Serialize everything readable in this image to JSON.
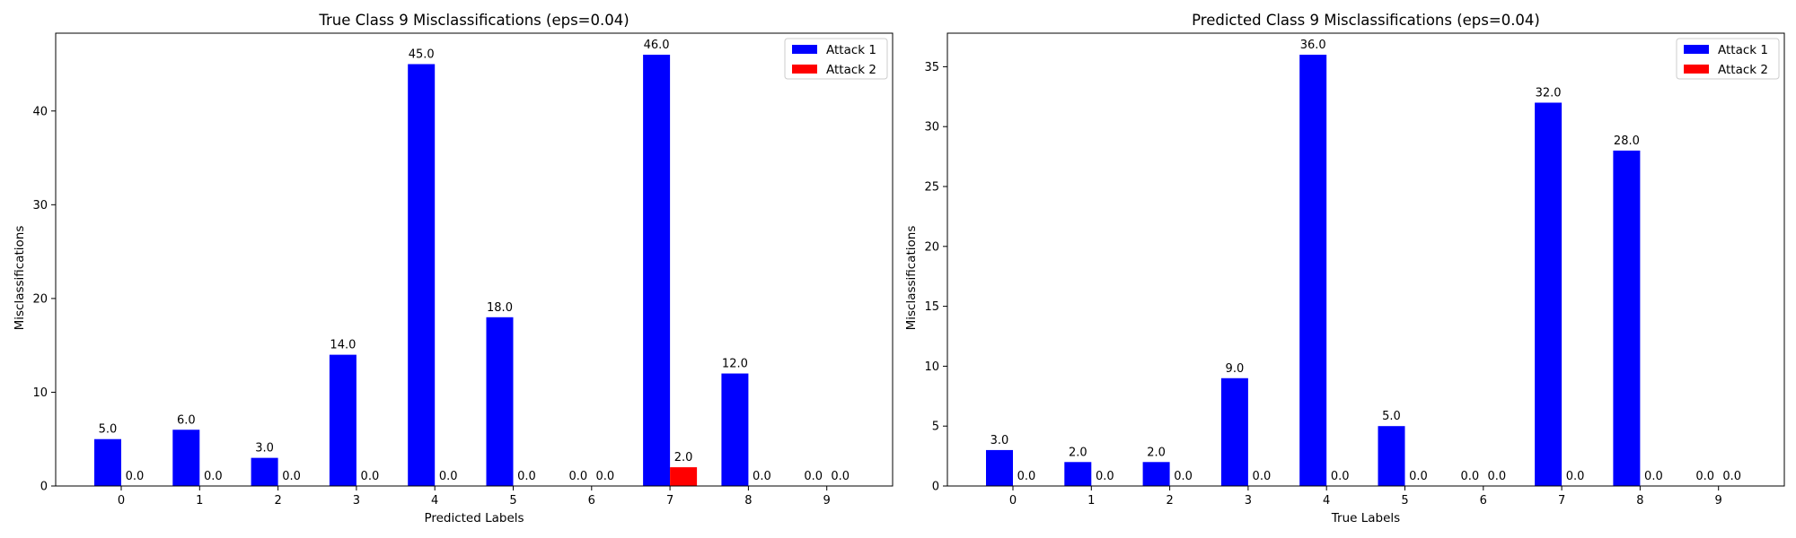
{
  "colors": {
    "attack_1": "#0000ff",
    "attack_2": "#ff0000"
  },
  "chart_data": [
    {
      "type": "bar",
      "title": "True Class 9 Misclassifications (eps=0.04)",
      "xlabel": "Predicted Labels",
      "ylabel": "Misclassifications",
      "categories": [
        "0",
        "1",
        "2",
        "3",
        "4",
        "5",
        "6",
        "7",
        "8",
        "9"
      ],
      "series": [
        {
          "name": "Attack 1",
          "values": [
            5,
            6,
            3,
            14,
            45,
            18,
            0,
            46,
            12,
            0
          ],
          "labels": [
            "5.0",
            "6.0",
            "3.0",
            "14.0",
            "45.0",
            "18.0",
            "0.0",
            "46.0",
            "12.0",
            "0.0"
          ]
        },
        {
          "name": "Attack 2",
          "values": [
            0,
            0,
            0,
            0,
            0,
            0,
            0,
            2,
            0,
            0
          ],
          "labels": [
            "0.0",
            "0.0",
            "0.0",
            "0.0",
            "0.0",
            "0.0",
            "0.0",
            "2.0",
            "0.0",
            "0.0"
          ]
        }
      ],
      "ylim": [
        0,
        48.3
      ],
      "yticks": [
        0,
        10,
        20,
        30,
        40
      ],
      "legend": "top-right",
      "grid": false
    },
    {
      "type": "bar",
      "title": "Predicted Class 9 Misclassifications (eps=0.04)",
      "xlabel": "True Labels",
      "ylabel": "Misclassifications",
      "categories": [
        "0",
        "1",
        "2",
        "3",
        "4",
        "5",
        "6",
        "7",
        "8",
        "9"
      ],
      "series": [
        {
          "name": "Attack 1",
          "values": [
            3,
            2,
            2,
            9,
            36,
            5,
            0,
            32,
            28,
            0
          ],
          "labels": [
            "3.0",
            "2.0",
            "2.0",
            "9.0",
            "36.0",
            "5.0",
            "0.0",
            "32.0",
            "28.0",
            "0.0"
          ]
        },
        {
          "name": "Attack 2",
          "values": [
            0,
            0,
            0,
            0,
            0,
            0,
            0,
            0,
            0,
            0
          ],
          "labels": [
            "0.0",
            "0.0",
            "0.0",
            "0.0",
            "0.0",
            "0.0",
            "0.0",
            "0.0",
            "0.0",
            "0.0"
          ]
        }
      ],
      "ylim": [
        0,
        37.8
      ],
      "yticks": [
        0,
        5,
        10,
        15,
        20,
        25,
        30,
        35
      ],
      "legend": "top-right",
      "grid": false
    }
  ]
}
